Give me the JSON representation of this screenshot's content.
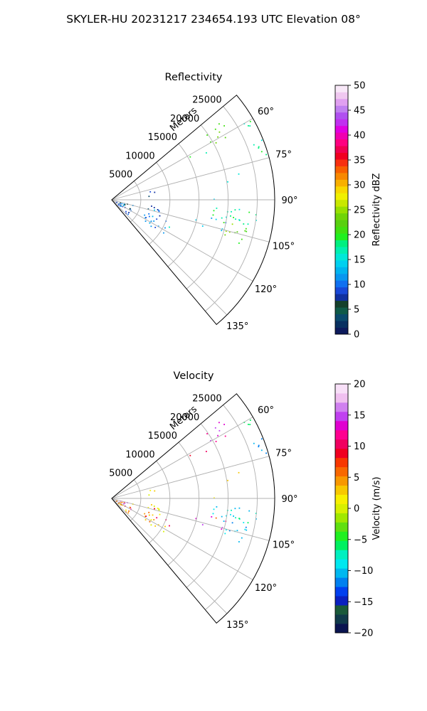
{
  "figure": {
    "suptitle": "SKYLER-HU  20231217  234654.193 UTC Elevation 08°"
  },
  "chart_data": [
    {
      "type": "heatmap",
      "title": "Reflectivity",
      "radial_label": "Meters",
      "range_ticks": [
        5000,
        10000,
        15000,
        20000,
        25000
      ],
      "range_tick_labels": [
        "5000",
        "10000",
        "15000",
        "20000",
        "25000"
      ],
      "rmax": 28000,
      "azimuth_range": [
        50,
        140
      ],
      "azimuth_ticks": [
        60,
        75,
        90,
        105,
        120,
        135
      ],
      "azimuth_tick_labels": [
        "60°",
        "75°",
        "90°",
        "105°",
        "120°",
        "135°"
      ],
      "grid": true,
      "colorbar": {
        "label": "Reflectivity dBZ",
        "range": [
          0,
          50
        ],
        "ticks": [
          0,
          5,
          10,
          15,
          20,
          25,
          30,
          35,
          40,
          45,
          50
        ],
        "tick_labels": [
          "0",
          "5",
          "10",
          "15",
          "20",
          "25",
          "30",
          "35",
          "40",
          "45",
          "50"
        ],
        "colormap": "pyart_HomeyerRainbow"
      },
      "echo_regions": [
        {
          "az": [
            54,
            62
          ],
          "range": [
            19000,
            23500
          ],
          "value": [
            20,
            25
          ],
          "density": 0.45
        },
        {
          "az": [
            58,
            66
          ],
          "range": [
            26000,
            28000
          ],
          "value": [
            15,
            20
          ],
          "density": 0.5
        },
        {
          "az": [
            64,
            74
          ],
          "range": [
            25500,
            28000
          ],
          "value": [
            15,
            20
          ],
          "density": 0.45
        },
        {
          "az": [
            58,
            64
          ],
          "range": [
            15000,
            20000
          ],
          "value": [
            15,
            20
          ],
          "density": 0.12
        },
        {
          "az": [
            78,
            84
          ],
          "range": [
            17000,
            20500
          ],
          "value": [
            15,
            20
          ],
          "density": 0.12
        },
        {
          "az": [
            60,
            120
          ],
          "range": [
            3000,
            24000
          ],
          "value": [
            10,
            18
          ],
          "density": 0.008
        },
        {
          "az": [
            94,
            102
          ],
          "range": [
            17000,
            25000
          ],
          "value": [
            15,
            20
          ],
          "density": 0.55
        },
        {
          "az": [
            101,
            109
          ],
          "range": [
            19000,
            25000
          ],
          "value": [
            20,
            25
          ],
          "density": 0.45
        },
        {
          "az": [
            100,
            106
          ],
          "range": [
            14000,
            20000
          ],
          "value": [
            10,
            18
          ],
          "density": 0.3
        },
        {
          "az": [
            110,
            124
          ],
          "range": [
            6000,
            10500
          ],
          "value": [
            8,
            14
          ],
          "density": 0.45
        },
        {
          "az": [
            95,
            110
          ],
          "range": [
            6000,
            9000
          ],
          "value": [
            3,
            10
          ],
          "density": 0.3
        },
        {
          "az": [
            66,
            86
          ],
          "range": [
            5000,
            8000
          ],
          "value": [
            3,
            10
          ],
          "density": 0.08
        },
        {
          "az": [
            100,
            135
          ],
          "range": [
            300,
            3800
          ],
          "value": [
            6,
            13
          ],
          "density": 0.35
        }
      ]
    },
    {
      "type": "heatmap",
      "title": "Velocity",
      "radial_label": "Meters",
      "range_ticks": [
        5000,
        10000,
        15000,
        20000,
        25000
      ],
      "range_tick_labels": [
        "5000",
        "10000",
        "15000",
        "20000",
        "25000"
      ],
      "rmax": 28000,
      "azimuth_range": [
        50,
        140
      ],
      "azimuth_ticks": [
        60,
        75,
        90,
        105,
        120,
        135
      ],
      "azimuth_tick_labels": [
        "60°",
        "75°",
        "90°",
        "105°",
        "120°",
        "135°"
      ],
      "grid": true,
      "colorbar": {
        "label": "Velocity (m/s)",
        "range": [
          -20,
          20
        ],
        "ticks": [
          -20,
          -15,
          -10,
          -5,
          0,
          5,
          10,
          15,
          20
        ],
        "tick_labels": [
          "−20",
          "−15",
          "−10",
          "−5",
          "0",
          "5",
          "10",
          "15",
          "20"
        ],
        "colormap": "pyart_BuDRd18"
      },
      "echo_regions": [
        {
          "az": [
            54,
            62
          ],
          "range": [
            19000,
            23500
          ],
          "value": [
            11,
            16
          ],
          "density": 0.45
        },
        {
          "az": [
            58,
            66
          ],
          "range": [
            26000,
            28000
          ],
          "value": [
            -7,
            -5
          ],
          "density": 0.5
        },
        {
          "az": [
            64,
            74
          ],
          "range": [
            25500,
            28000
          ],
          "value": [
            -13,
            -10
          ],
          "density": 0.45
        },
        {
          "az": [
            58,
            64
          ],
          "range": [
            15000,
            20000
          ],
          "value": [
            8,
            12
          ],
          "density": 0.12
        },
        {
          "az": [
            78,
            84
          ],
          "range": [
            17000,
            20500
          ],
          "value": [
            2,
            4
          ],
          "density": 0.12
        },
        {
          "az": [
            60,
            120
          ],
          "range": [
            3000,
            24000
          ],
          "value": [
            0,
            12
          ],
          "density": 0.008
        },
        {
          "az": [
            94,
            102
          ],
          "range": [
            17000,
            25000
          ],
          "value": [
            -12,
            -6
          ],
          "density": 0.55
        },
        {
          "az": [
            101,
            109
          ],
          "range": [
            19000,
            25000
          ],
          "value": [
            -12,
            -8
          ],
          "density": 0.45
        },
        {
          "az": [
            100,
            106
          ],
          "range": [
            14000,
            20000
          ],
          "value": [
            12,
            18
          ],
          "density": 0.3
        },
        {
          "az": [
            110,
            124
          ],
          "range": [
            6000,
            10500
          ],
          "value": [
            0,
            10
          ],
          "density": 0.45
        },
        {
          "az": [
            95,
            110
          ],
          "range": [
            6000,
            9000
          ],
          "value": [
            0,
            3
          ],
          "density": 0.3
        },
        {
          "az": [
            66,
            86
          ],
          "range": [
            5000,
            8000
          ],
          "value": [
            0,
            3
          ],
          "density": 0.08
        },
        {
          "az": [
            100,
            135
          ],
          "range": [
            300,
            3800
          ],
          "value": [
            1,
            18
          ],
          "density": 0.35
        }
      ]
    }
  ]
}
